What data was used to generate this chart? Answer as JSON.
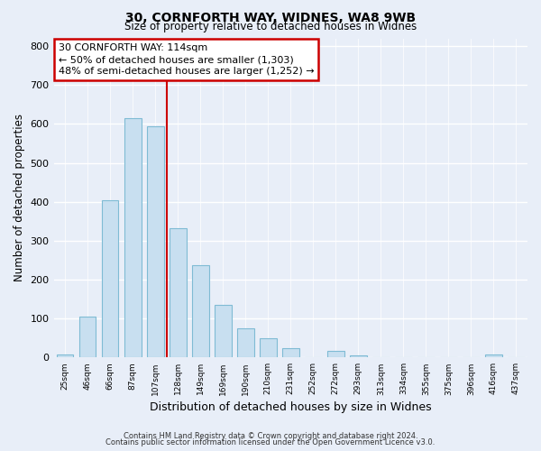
{
  "title": "30, CORNFORTH WAY, WIDNES, WA8 9WB",
  "subtitle": "Size of property relative to detached houses in Widnes",
  "xlabel": "Distribution of detached houses by size in Widnes",
  "ylabel": "Number of detached properties",
  "bar_labels": [
    "25sqm",
    "46sqm",
    "66sqm",
    "87sqm",
    "107sqm",
    "128sqm",
    "149sqm",
    "169sqm",
    "190sqm",
    "210sqm",
    "231sqm",
    "252sqm",
    "272sqm",
    "293sqm",
    "313sqm",
    "334sqm",
    "355sqm",
    "375sqm",
    "396sqm",
    "416sqm",
    "437sqm"
  ],
  "bar_heights": [
    7,
    105,
    405,
    615,
    595,
    332,
    237,
    136,
    76,
    50,
    25,
    0,
    16,
    5,
    0,
    0,
    0,
    0,
    0,
    8,
    0
  ],
  "bar_color": "#c8dff0",
  "bar_edge_color": "#7fbbd4",
  "property_line_x": 4.5,
  "property_line_color": "#cc0000",
  "annotation_title": "30 CORNFORTH WAY: 114sqm",
  "annotation_line1": "← 50% of detached houses are smaller (1,303)",
  "annotation_line2": "48% of semi-detached houses are larger (1,252) →",
  "annotation_box_color": "#ffffff",
  "annotation_box_edge": "#cc0000",
  "ylim": [
    0,
    820
  ],
  "yticks": [
    0,
    100,
    200,
    300,
    400,
    500,
    600,
    700,
    800
  ],
  "background_color": "#e8eef8",
  "plot_bg_color": "#e8eef8",
  "footnote1": "Contains HM Land Registry data © Crown copyright and database right 2024.",
  "footnote2": "Contains public sector information licensed under the Open Government Licence v3.0."
}
